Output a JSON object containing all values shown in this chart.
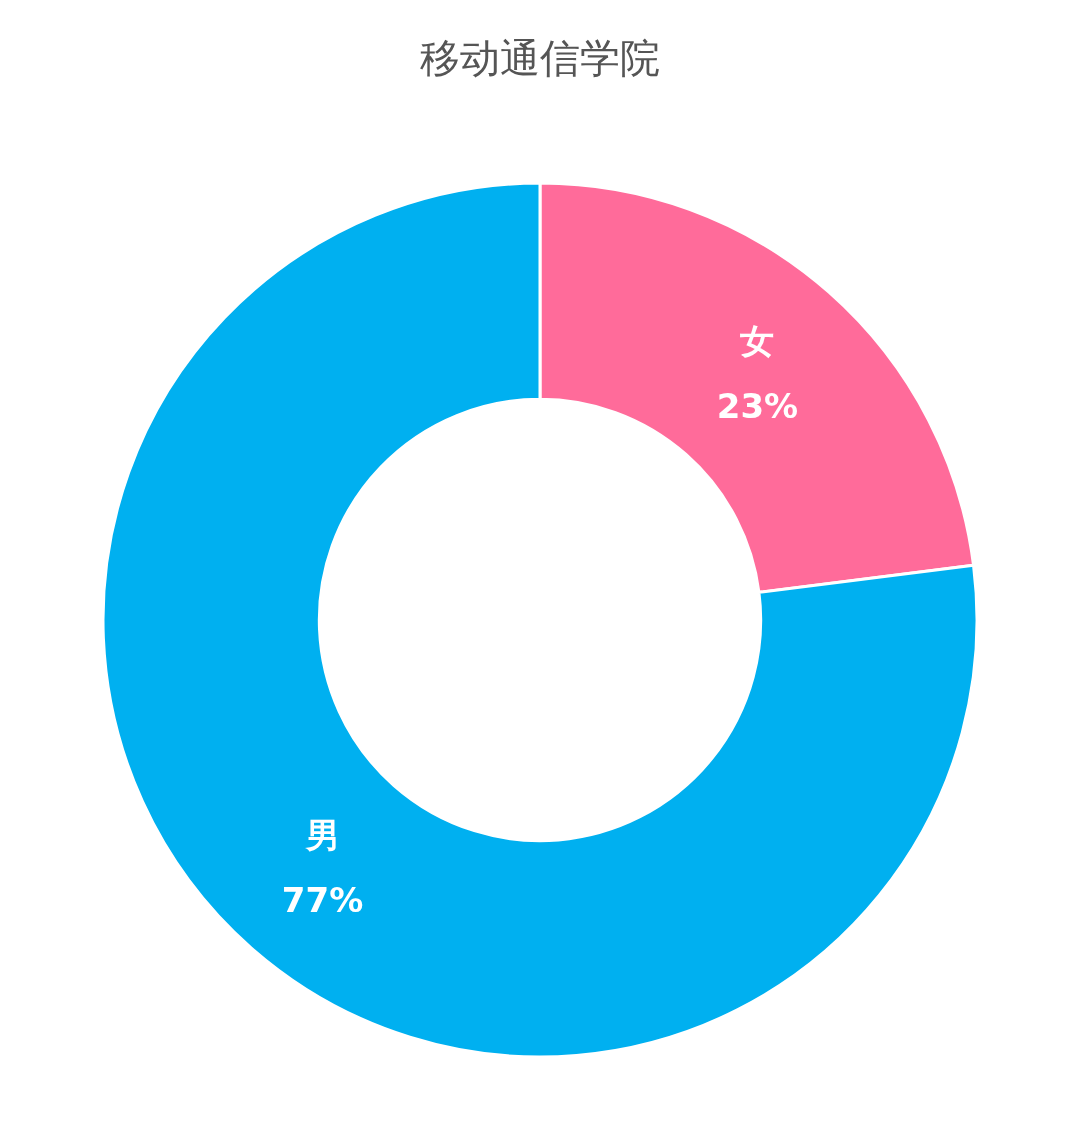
{
  "chart_data": {
    "type": "donut",
    "title": "移动通信学院",
    "categories": [
      "女",
      "男"
    ],
    "values": [
      23,
      77
    ],
    "colors": [
      "#ff6b9a",
      "#00b0f0"
    ],
    "value_labels": [
      "23%",
      "77%"
    ],
    "legend": false
  }
}
